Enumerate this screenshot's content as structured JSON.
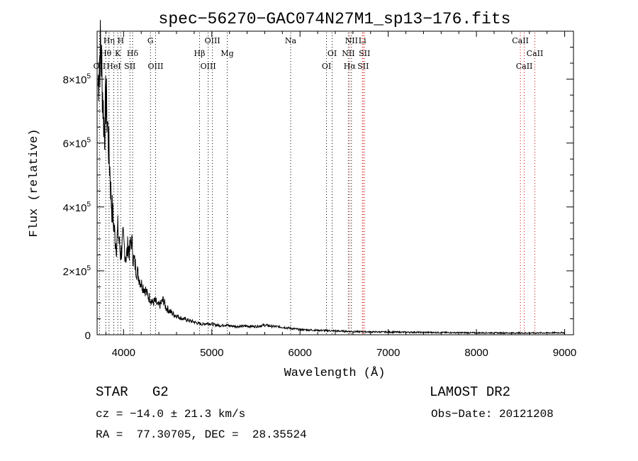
{
  "chart_data": {
    "type": "line",
    "title": "spec−56270−GAC074N27M1_sp13−176.fits",
    "xlabel": "Wavelength (Å)",
    "ylabel": "Flux (relative)",
    "xlim": [
      3700,
      9100
    ],
    "ylim": [
      0,
      950000
    ],
    "grid": false,
    "x_ticks": [
      4000,
      5000,
      6000,
      7000,
      8000,
      9000
    ],
    "x_tick_labels": [
      "4000",
      "5000",
      "6000",
      "7000",
      "8000",
      "9000"
    ],
    "y_ticks": [
      0,
      200000,
      400000,
      600000,
      800000
    ],
    "y_tick_labels": [
      {
        "mant": "0",
        "exp": ""
      },
      {
        "mant": "2×10",
        "exp": "5"
      },
      {
        "mant": "4×10",
        "exp": "5"
      },
      {
        "mant": "6×10",
        "exp": "5"
      },
      {
        "mant": "8×10",
        "exp": "5"
      }
    ],
    "series": [
      {
        "color": "#000000",
        "points": [
          [
            3710,
            780000
          ],
          [
            3725,
            860000
          ],
          [
            3740,
            900000
          ],
          [
            3755,
            820000
          ],
          [
            3770,
            700000
          ],
          [
            3785,
            640000
          ],
          [
            3800,
            740000
          ],
          [
            3815,
            680000
          ],
          [
            3830,
            590000
          ],
          [
            3845,
            520000
          ],
          [
            3860,
            420000
          ],
          [
            3875,
            380000
          ],
          [
            3890,
            340000
          ],
          [
            3905,
            300000
          ],
          [
            3920,
            280000
          ],
          [
            3935,
            330000
          ],
          [
            3950,
            290000
          ],
          [
            3965,
            250000
          ],
          [
            3980,
            270000
          ],
          [
            3995,
            300000
          ],
          [
            4010,
            270000
          ],
          [
            4030,
            240000
          ],
          [
            4050,
            280000
          ],
          [
            4070,
            260000
          ],
          [
            4090,
            300000
          ],
          [
            4110,
            240000
          ],
          [
            4130,
            220000
          ],
          [
            4150,
            200000
          ],
          [
            4175,
            180000
          ],
          [
            4200,
            160000
          ],
          [
            4225,
            150000
          ],
          [
            4250,
            140000
          ],
          [
            4275,
            120000
          ],
          [
            4300,
            115000
          ],
          [
            4330,
            100000
          ],
          [
            4360,
            105000
          ],
          [
            4390,
            90000
          ],
          [
            4420,
            95000
          ],
          [
            4450,
            110000
          ],
          [
            4480,
            85000
          ],
          [
            4520,
            75000
          ],
          [
            4560,
            65000
          ],
          [
            4600,
            60000
          ],
          [
            4650,
            52000
          ],
          [
            4700,
            48000
          ],
          [
            4750,
            44000
          ],
          [
            4800,
            40000
          ],
          [
            4850,
            35000
          ],
          [
            4900,
            33000
          ],
          [
            4950,
            36000
          ],
          [
            5000,
            34000
          ],
          [
            5050,
            30000
          ],
          [
            5100,
            29000
          ],
          [
            5150,
            31000
          ],
          [
            5200,
            28000
          ],
          [
            5300,
            26000
          ],
          [
            5400,
            27000
          ],
          [
            5500,
            26000
          ],
          [
            5600,
            30000
          ],
          [
            5700,
            26000
          ],
          [
            5800,
            24000
          ],
          [
            5900,
            20000
          ],
          [
            6000,
            16000
          ],
          [
            6100,
            15000
          ],
          [
            6200,
            14000
          ],
          [
            6300,
            13000
          ],
          [
            6400,
            12000
          ],
          [
            6500,
            11000
          ],
          [
            6600,
            10000
          ],
          [
            6700,
            9500
          ],
          [
            6800,
            9000
          ],
          [
            7000,
            8500
          ],
          [
            7200,
            8000
          ],
          [
            7400,
            7500
          ],
          [
            7600,
            7000
          ],
          [
            7800,
            6500
          ],
          [
            8000,
            6000
          ],
          [
            8200,
            6000
          ],
          [
            8400,
            5500
          ],
          [
            8600,
            5500
          ],
          [
            8800,
            6000
          ],
          [
            9000,
            6500
          ]
        ]
      }
    ],
    "spectral_lines": [
      {
        "label": "OII",
        "wave": 3727,
        "row": 3,
        "color": "#000000"
      },
      {
        "label": "Hθ",
        "wave": 3798,
        "row": 2,
        "color": "#000000"
      },
      {
        "label": "Hη",
        "wave": 3835,
        "row": 1,
        "color": "#000000"
      },
      {
        "label": "HeI",
        "wave": 3889,
        "row": 3,
        "color": "#000000"
      },
      {
        "label": "K",
        "wave": 3934,
        "row": 2,
        "color": "#000000"
      },
      {
        "label": "H",
        "wave": 3968,
        "row": 1,
        "color": "#000000"
      },
      {
        "label": "SII",
        "wave": 4072,
        "row": 3,
        "color": "#000000"
      },
      {
        "label": "Hδ",
        "wave": 4102,
        "row": 2,
        "color": "#000000"
      },
      {
        "label": "G",
        "wave": 4305,
        "row": 1,
        "color": "#000000"
      },
      {
        "label": "OIII",
        "wave": 4363,
        "row": 3,
        "color": "#000000"
      },
      {
        "label": "Hβ",
        "wave": 4861,
        "row": 2,
        "color": "#000000"
      },
      {
        "label": "OIII",
        "wave": 4959,
        "row": 3,
        "color": "#000000"
      },
      {
        "label": "OIII",
        "wave": 5007,
        "row": 1,
        "color": "#000000"
      },
      {
        "label": "Mg",
        "wave": 5175,
        "row": 2,
        "color": "#000000"
      },
      {
        "label": "Na",
        "wave": 5894,
        "row": 1,
        "color": "#000000"
      },
      {
        "label": "OI",
        "wave": 6300,
        "row": 3,
        "color": "#000000"
      },
      {
        "label": "OI",
        "wave": 6364,
        "row": 2,
        "color": "#000000"
      },
      {
        "label": "NII",
        "wave": 6548,
        "row": 2,
        "color": "#000000"
      },
      {
        "label": "Hα",
        "wave": 6563,
        "row": 3,
        "color": "#d00000"
      },
      {
        "label": "NII",
        "wave": 6583,
        "row": 1,
        "color": "#000000"
      },
      {
        "label": "Li",
        "wave": 6707,
        "row": 1,
        "color": "#d00000"
      },
      {
        "label": "SII",
        "wave": 6716,
        "row": 3,
        "color": "#d00000"
      },
      {
        "label": "SII",
        "wave": 6731,
        "row": 2,
        "color": "#d00000"
      },
      {
        "label": "CaII",
        "wave": 8498,
        "row": 1,
        "color": "#d00000"
      },
      {
        "label": "CaII",
        "wave": 8542,
        "row": 3,
        "color": "#d00000"
      },
      {
        "label": "CaII",
        "wave": 8662,
        "row": 2,
        "color": "#d00000"
      }
    ]
  },
  "info": {
    "class_line": "STAR   G2",
    "survey": "LAMOST DR2",
    "cz": "cz = −14.0 ± 21.3 km/s",
    "obs_date": "Obs−Date: 20121208",
    "coords": "RA =  77.30705, DEC =  28.35524"
  }
}
